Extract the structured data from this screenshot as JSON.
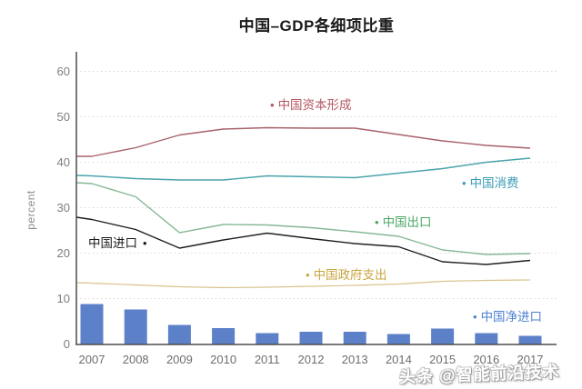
{
  "page": {
    "watermark": "头条 @智能前沿技术"
  },
  "chart_data": {
    "type": "line+bar",
    "title": "中国–GDP各细项比重",
    "ylabel": "percent",
    "xlabel": "",
    "x": [
      2007,
      2008,
      2009,
      2010,
      2011,
      2012,
      2013,
      2014,
      2015,
      2016,
      2017
    ],
    "ylim": [
      0,
      63
    ],
    "yticks": [
      0,
      10,
      20,
      30,
      40,
      50,
      60
    ],
    "grid": "horizontal-dashed",
    "legend_position": "inline-annotations",
    "series": [
      {
        "id": "capital_formation",
        "label": "中国资本形成",
        "line_color": "#a8616b",
        "label_color": "#b4565e",
        "edge_value": 41.3,
        "values": [
          41.3,
          43.2,
          46.0,
          47.3,
          47.6,
          47.5,
          47.5,
          46.1,
          44.7,
          43.7,
          43.1
        ]
      },
      {
        "id": "consumption",
        "label": "中国消费",
        "line_color": "#4aa3ab",
        "label_color": "#3b9cb8",
        "edge_value": 37.1,
        "values": [
          37.0,
          36.4,
          36.1,
          36.1,
          37.0,
          36.8,
          36.6,
          37.6,
          38.6,
          40.0,
          40.9
        ]
      },
      {
        "id": "exports",
        "label": "中国出口",
        "line_color": "#86b794",
        "label_color": "#4ba763",
        "edge_value": 35.5,
        "values": [
          35.3,
          32.4,
          24.5,
          26.3,
          26.2,
          25.6,
          24.7,
          23.7,
          20.7,
          19.7,
          19.9
        ]
      },
      {
        "id": "imports",
        "label": "中国进口",
        "line_color": "#1f1f1f",
        "label_color": "#1a1a1a",
        "bullet": "after",
        "edge_value": 27.9,
        "values": [
          27.4,
          25.2,
          21.1,
          22.9,
          24.4,
          23.2,
          22.1,
          21.4,
          18.1,
          17.5,
          18.4
        ]
      },
      {
        "id": "government",
        "label": "中国政府支出",
        "line_color": "#d9c48c",
        "label_color": "#c8a53e",
        "edge_value": 13.5,
        "values": [
          13.4,
          13.0,
          12.6,
          12.4,
          12.5,
          12.7,
          12.9,
          13.2,
          13.8,
          14.0,
          14.1
        ]
      }
    ],
    "bar_series": {
      "id": "net_imports",
      "label": "中国净进口",
      "color": "#5d81c9",
      "label_color": "#4f81d2",
      "values": [
        8.8,
        7.6,
        4.2,
        3.5,
        2.4,
        2.7,
        2.7,
        2.2,
        3.4,
        2.4,
        1.8
      ]
    }
  }
}
